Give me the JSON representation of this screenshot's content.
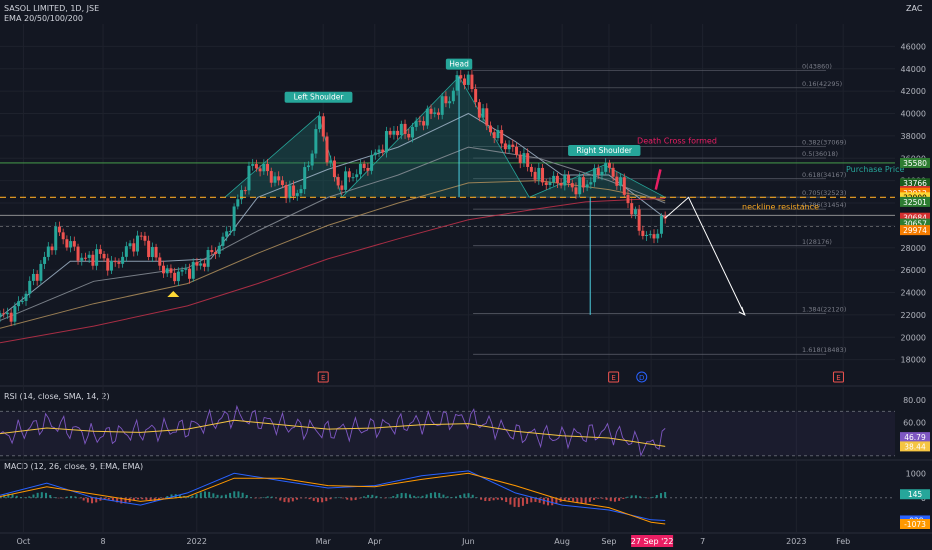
{
  "header": {
    "symbol": "SASOL LIMITED, 1D, JSE",
    "indicator": "EMA 20/50/100/200",
    "currency": "ZAC"
  },
  "panels": {
    "rsi_label": "RSI (14, close, SMA, 14, 2)",
    "macd_label": "MACD (12, 26, close, 9, EMA, EMA)"
  },
  "colors": {
    "background": "#131722",
    "bull": "#26a69a",
    "bear": "#ef5350",
    "pattern_fill": "#1f6f6a",
    "neckline": "#f5a623",
    "rsi": "#7e57c2",
    "rsi_signal": "#f5c542",
    "macd": "#2962ff",
    "macd_signal": "#ff9800"
  },
  "chart_data": [
    {
      "type": "candlestick",
      "title": "SASOL LIMITED, 1D, JSE",
      "ylim": [
        16000,
        48000
      ],
      "y_ticks": [
        18000,
        20000,
        22000,
        24000,
        26000,
        28000,
        30000,
        32000,
        34000,
        36000,
        38000,
        40000,
        42000,
        44000,
        46000
      ],
      "x_ticks": [
        {
          "label": "Oct",
          "x": 0.5
        },
        {
          "label": "8",
          "x": 2.2
        },
        {
          "label": "2022",
          "x": 4.2
        },
        {
          "label": "Mar",
          "x": 6.9
        },
        {
          "label": "Apr",
          "x": 8.0
        },
        {
          "label": "Jun",
          "x": 10.0
        },
        {
          "label": "Aug",
          "x": 12.0
        },
        {
          "label": "Sep",
          "x": 13.0
        },
        {
          "label": "27 Sep '22",
          "x": 13.9
        },
        {
          "label": "7",
          "x": 15.0
        },
        {
          "label": "2023",
          "x": 17.0
        },
        {
          "label": "Feb",
          "x": 18.0
        }
      ],
      "close_path": [
        [
          0.0,
          21800
        ],
        [
          0.3,
          22200
        ],
        [
          0.6,
          24500
        ],
        [
          0.9,
          26500
        ],
        [
          1.2,
          29500
        ],
        [
          1.5,
          28200
        ],
        [
          1.8,
          26800
        ],
        [
          2.1,
          27500
        ],
        [
          2.4,
          26200
        ],
        [
          2.7,
          27800
        ],
        [
          3.0,
          29000
        ],
        [
          3.3,
          27200
        ],
        [
          3.6,
          25500
        ],
        [
          3.9,
          25800
        ],
        [
          4.2,
          26300
        ],
        [
          4.5,
          27400
        ],
        [
          4.8,
          28800
        ],
        [
          5.1,
          32500
        ],
        [
          5.4,
          35500
        ],
        [
          5.7,
          34800
        ],
        [
          6.0,
          33600
        ],
        [
          6.3,
          32500
        ],
        [
          6.6,
          35500
        ],
        [
          6.8,
          39800
        ],
        [
          7.0,
          36000
        ],
        [
          7.2,
          33500
        ],
        [
          7.5,
          34500
        ],
        [
          7.8,
          35200
        ],
        [
          8.1,
          36800
        ],
        [
          8.4,
          38600
        ],
        [
          8.7,
          38200
        ],
        [
          9.0,
          39500
        ],
        [
          9.3,
          40200
        ],
        [
          9.6,
          41400
        ],
        [
          9.8,
          43300
        ],
        [
          10.0,
          43000
        ],
        [
          10.2,
          40500
        ],
        [
          10.5,
          38300
        ],
        [
          10.8,
          37200
        ],
        [
          11.1,
          36200
        ],
        [
          11.4,
          34600
        ],
        [
          11.7,
          33800
        ],
        [
          12.0,
          34100
        ],
        [
          12.3,
          33300
        ],
        [
          12.6,
          34000
        ],
        [
          12.9,
          35400
        ],
        [
          13.1,
          34500
        ],
        [
          13.3,
          33200
        ],
        [
          13.5,
          31200
        ],
        [
          13.7,
          29400
        ],
        [
          13.9,
          28700
        ],
        [
          14.1,
          30100
        ],
        [
          14.2,
          30657
        ]
      ],
      "series": [
        {
          "name": "EMA 20",
          "color": "#a0b4c8",
          "points": [
            [
              0.0,
              21800
            ],
            [
              1.5,
              26800
            ],
            [
              3.5,
              26800
            ],
            [
              4.5,
              27000
            ],
            [
              5.5,
              32500
            ],
            [
              7.0,
              35000
            ],
            [
              8.5,
              37000
            ],
            [
              10.0,
              40000
            ],
            [
              11.0,
              37500
            ],
            [
              12.0,
              34500
            ],
            [
              13.0,
              34500
            ],
            [
              14.2,
              30657
            ]
          ]
        },
        {
          "name": "EMA 50",
          "color": "#8a8f98",
          "points": [
            [
              0.0,
              21500
            ],
            [
              2.0,
              25000
            ],
            [
              4.0,
              26200
            ],
            [
              5.5,
              29500
            ],
            [
              7.0,
              32500
            ],
            [
              8.5,
              34500
            ],
            [
              10.0,
              37000
            ],
            [
              11.5,
              36000
            ],
            [
              13.0,
              34000
            ],
            [
              14.2,
              32000
            ]
          ]
        },
        {
          "name": "EMA 100",
          "color": "#b08f5c",
          "points": [
            [
              0.0,
              20800
            ],
            [
              2.0,
              23000
            ],
            [
              4.0,
              24800
            ],
            [
              5.5,
              27500
            ],
            [
              7.0,
              30000
            ],
            [
              8.5,
              32000
            ],
            [
              10.0,
              33800
            ],
            [
              11.5,
              34000
            ],
            [
              13.0,
              33200
            ],
            [
              14.2,
              32200
            ]
          ]
        },
        {
          "name": "EMA 200",
          "color": "#c2314a",
          "points": [
            [
              0.0,
              19500
            ],
            [
              2.0,
              21000
            ],
            [
              4.0,
              22800
            ],
            [
              5.5,
              24800
            ],
            [
              7.0,
              27000
            ],
            [
              8.5,
              28800
            ],
            [
              10.0,
              30500
            ],
            [
              11.5,
              31500
            ],
            [
              12.5,
              32100
            ],
            [
              13.5,
              32300
            ],
            [
              14.2,
              32400
            ]
          ]
        }
      ],
      "annotations": {
        "left_shoulder": "Left Shoulder",
        "head": "Head",
        "right_shoulder": "Right Shoulder",
        "death_cross": "Death Cross formed",
        "purchase_price": "Purchase Price",
        "neckline": "neckline resistance",
        "neckline_level": 32509,
        "purchase_level": 35580,
        "projection": [
          [
            14.2,
            30657
          ],
          [
            14.7,
            32500
          ],
          [
            15.9,
            22000
          ]
        ]
      },
      "fib_levels": [
        {
          "label": "0(43860)",
          "value": 43860
        },
        {
          "label": "0.16(42295)",
          "value": 42295
        },
        {
          "label": "0.382(37069)",
          "value": 37069
        },
        {
          "label": "0.5(36018)",
          "value": 36018
        },
        {
          "label": "0.618(34167)",
          "value": 34167
        },
        {
          "label": "0.705(32523)",
          "value": 32523
        },
        {
          "label": "0.786(31454)",
          "value": 31454
        },
        {
          "label": "1(28176)",
          "value": 28176
        },
        {
          "label": "1.384(22120)",
          "value": 22120
        },
        {
          "label": "1.618(18483)",
          "value": 18483
        }
      ],
      "price_tags": [
        {
          "value": 35580,
          "label": "35580",
          "color": "#2e7d32"
        },
        {
          "value": 33766,
          "label": "33766",
          "color": "#1b5e20"
        },
        {
          "value": 33070,
          "label": "33070",
          "color": "#d32f2f"
        },
        {
          "value": 32912,
          "label": "32912",
          "color": "#f57c00"
        },
        {
          "value": 32509,
          "label": "32909",
          "color": "#fdd835"
        },
        {
          "value": 32101,
          "label": "32501",
          "color": "#2e7d32"
        },
        {
          "value": 30684,
          "label": "30684",
          "color": "#d32f2f"
        },
        {
          "value": 30157,
          "label": "30657",
          "color": "#2e7d32"
        },
        {
          "value": 29574,
          "label": "29974",
          "color": "#f57c00"
        }
      ],
      "event_markers": [
        {
          "x": 6.9,
          "label": "E"
        },
        {
          "x": 13.1,
          "label": "E"
        },
        {
          "x": 13.7,
          "label": "D"
        },
        {
          "x": 17.9,
          "label": "E"
        }
      ]
    },
    {
      "type": "line",
      "title": "RSI (14, close, SMA, 14, 2)",
      "ylim": [
        28,
        82
      ],
      "y_ticks": [
        40,
        60,
        80
      ],
      "y_tick_labels": [
        "40.00",
        "60.00",
        "80.00"
      ],
      "bands": [
        70,
        30
      ],
      "series": [
        {
          "name": "RSI",
          "points": [
            [
              0.0,
              46
            ],
            [
              1.0,
              60
            ],
            [
              2.0,
              48
            ],
            [
              3.0,
              52
            ],
            [
              4.0,
              55
            ],
            [
              5.0,
              66
            ],
            [
              6.0,
              58
            ],
            [
              7.0,
              52
            ],
            [
              8.0,
              56
            ],
            [
              9.0,
              60
            ],
            [
              10.0,
              64
            ],
            [
              11.0,
              50
            ],
            [
              12.0,
              47
            ],
            [
              13.0,
              52
            ],
            [
              13.8,
              38
            ],
            [
              14.2,
              46.79
            ]
          ]
        },
        {
          "name": "RSI SMA",
          "points": [
            [
              0.0,
              50
            ],
            [
              1.0,
              55
            ],
            [
              2.0,
              52
            ],
            [
              3.0,
              51
            ],
            [
              4.0,
              54
            ],
            [
              5.0,
              62
            ],
            [
              6.0,
              58
            ],
            [
              7.0,
              54
            ],
            [
              8.0,
              55
            ],
            [
              9.0,
              58
            ],
            [
              10.0,
              59
            ],
            [
              11.0,
              52
            ],
            [
              12.0,
              48
            ],
            [
              13.0,
              46
            ],
            [
              14.2,
              38.44
            ]
          ]
        }
      ],
      "value_tags": [
        {
          "value": 46.79,
          "label": "46.79",
          "color": "#7e57c2"
        },
        {
          "value": 38.44,
          "label": "38.44",
          "color": "#f5c542"
        }
      ]
    },
    {
      "type": "line",
      "title": "MACD (12, 26, close, 9, EMA, EMA)",
      "ylim": [
        -1400,
        1300
      ],
      "y_ticks": [
        0,
        1000
      ],
      "y_tick_labels": [
        "0",
        "1000"
      ],
      "series": [
        {
          "name": "MACD",
          "points": [
            [
              0.0,
              100
            ],
            [
              1.0,
              600
            ],
            [
              2.0,
              0
            ],
            [
              3.0,
              -300
            ],
            [
              4.0,
              200
            ],
            [
              5.0,
              1000
            ],
            [
              6.0,
              700
            ],
            [
              7.0,
              400
            ],
            [
              8.0,
              500
            ],
            [
              9.0,
              900
            ],
            [
              10.0,
              1100
            ],
            [
              11.0,
              200
            ],
            [
              12.0,
              -300
            ],
            [
              13.0,
              -500
            ],
            [
              13.9,
              -900
            ],
            [
              14.2,
              -928
            ]
          ]
        },
        {
          "name": "Signal",
          "points": [
            [
              0.0,
              50
            ],
            [
              1.0,
              450
            ],
            [
              2.0,
              150
            ],
            [
              3.0,
              -150
            ],
            [
              4.0,
              50
            ],
            [
              5.0,
              800
            ],
            [
              6.0,
              800
            ],
            [
              7.0,
              500
            ],
            [
              8.0,
              450
            ],
            [
              9.0,
              750
            ],
            [
              10.0,
              1000
            ],
            [
              11.0,
              500
            ],
            [
              12.0,
              -100
            ],
            [
              13.0,
              -400
            ],
            [
              13.9,
              -1000
            ],
            [
              14.2,
              -1073
            ]
          ]
        }
      ],
      "histogram_last": 145,
      "value_tags": [
        {
          "value": 145,
          "label": "145",
          "color": "#26a69a"
        },
        {
          "value": -928,
          "label": "-928",
          "color": "#2962ff"
        },
        {
          "value": -1073,
          "label": "-1073",
          "color": "#ff9800"
        }
      ]
    }
  ]
}
